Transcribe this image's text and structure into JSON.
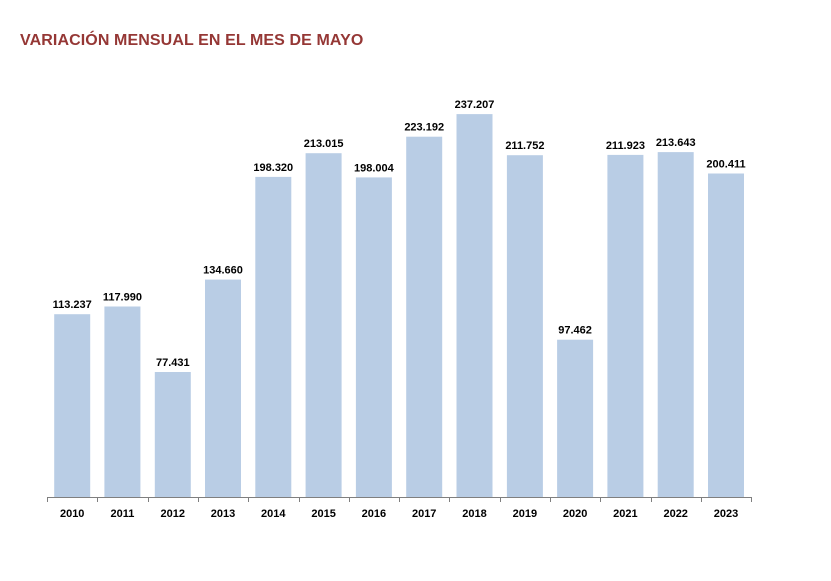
{
  "chart_data": {
    "type": "bar",
    "title": "VARIACIÓN MENSUAL EN EL MES DE MAYO",
    "xlabel": "",
    "ylabel": "",
    "ylim": [
      0,
      250000
    ],
    "grid": false,
    "legend": "none",
    "categories": [
      "2010",
      "2011",
      "2012",
      "2013",
      "2014",
      "2015",
      "2016",
      "2017",
      "2018",
      "2019",
      "2020",
      "2021",
      "2022",
      "2023"
    ],
    "values": [
      113237,
      117990,
      77431,
      134660,
      198320,
      213015,
      198004,
      223192,
      237207,
      211752,
      97462,
      211923,
      213643,
      200411
    ],
    "value_labels": [
      "113.237",
      "117.990",
      "77.431",
      "134.660",
      "198.320",
      "213.015",
      "198.004",
      "223.192",
      "237.207",
      "211.752",
      "97.462",
      "211.923",
      "213.643",
      "200.411"
    ],
    "colors": {
      "bar": "#b9cde5",
      "title": "#953735",
      "axis": "#7f7f7f"
    }
  }
}
